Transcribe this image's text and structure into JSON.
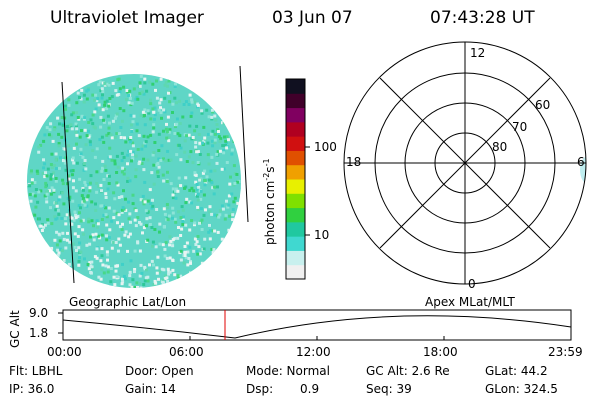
{
  "header": {
    "instrument": "Ultraviolet Imager",
    "date": "03 Jun 07",
    "time": "07:43:28 UT"
  },
  "colorbar": {
    "label_main": "photon cm",
    "label_sup1": "-2",
    "label_mid": "s",
    "label_sup2": "-1",
    "ticks": [
      "100",
      "10"
    ],
    "colors": [
      "#f0f0f0",
      "#c8f0ee",
      "#40d8d0",
      "#20c8a0",
      "#30d040",
      "#80e000",
      "#e8f000",
      "#f0a000",
      "#e05000",
      "#d01010",
      "#b00020",
      "#800060",
      "#40002a",
      "#101020"
    ]
  },
  "polar": {
    "labels": {
      "top": "12",
      "bottom": "0",
      "left": "18",
      "right": "6",
      "ring60": "60",
      "ring70": "70",
      "ring80": "80"
    }
  },
  "timeline": {
    "left_caption": "Geographic Lat/Lon",
    "right_caption": "Apex MLat/MLT",
    "axis_label": "GC Alt",
    "y_max": "9.0",
    "y_min": "1.8",
    "x_ticks": [
      "00:00",
      "06:00",
      "12:00",
      "18:00",
      "23:59"
    ],
    "marker_color": "#e00000",
    "marker_time": "07:43:28"
  },
  "footer": {
    "row1": {
      "flt": "Flt: LBHL",
      "door": "Door: Open",
      "mode": "Mode: Normal",
      "gcalt": "GC Alt: 2.6 Re",
      "glat": "GLat:  44.2"
    },
    "row2": {
      "ip": "IP: 36.0",
      "gain": "Gain: 14",
      "dsp_label": "Dsp:",
      "dsp_value": "0.9",
      "seq": "Seq: 39",
      "glon": "GLon: 324.5"
    }
  }
}
